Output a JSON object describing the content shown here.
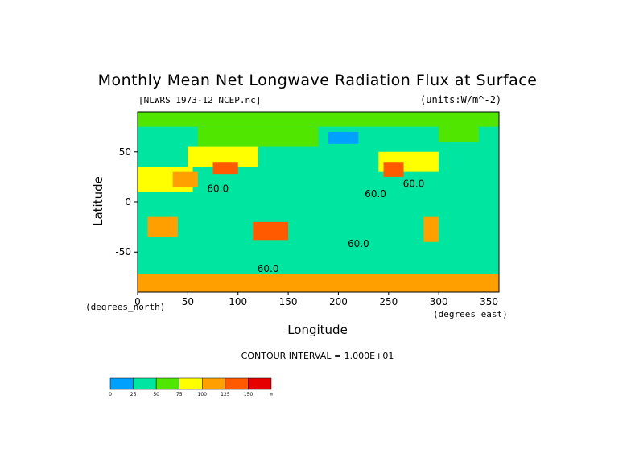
{
  "chart_data": {
    "type": "heatmap",
    "title": "Monthly Mean Net Longwave Radiation Flux at Surface",
    "file_label": "[NLWRS_1973-12_NCEP.nc]",
    "units_label": "(units:W/m^-2)",
    "xlabel": "Longitude",
    "ylabel": "Latitude",
    "x_unit_label": "(degrees_east)",
    "y_unit_label": "(degrees_north)",
    "xlim": [
      0,
      360
    ],
    "ylim": [
      -90,
      90
    ],
    "x_ticks": [
      0,
      50,
      100,
      150,
      200,
      250,
      300,
      350
    ],
    "y_ticks": [
      50,
      0,
      -50
    ],
    "contour_interval_label": "CONTOUR INTERVAL = 1.000E+01",
    "contour_labels": [
      "60.0",
      "60.0",
      "60.0",
      "60.0",
      "60.0"
    ],
    "colorbar": {
      "levels": [
        "0",
        "25",
        "50",
        "75",
        "100",
        "125",
        "150",
        "∞"
      ],
      "colors": [
        "#00a0ff",
        "#00e6a0",
        "#50e600",
        "#ffff00",
        "#ffa000",
        "#ff5a00",
        "#e60000"
      ]
    },
    "regions": [
      {
        "name": "base",
        "lon": [
          0,
          360
        ],
        "lat": [
          -90,
          90
        ],
        "value": 40
      },
      {
        "name": "tropical-band",
        "lon": [
          0,
          360
        ],
        "lat": [
          -25,
          25
        ],
        "value": 35
      },
      {
        "name": "arctic-band",
        "lon": [
          0,
          360
        ],
        "lat": [
          75,
          90
        ],
        "value": 55
      },
      {
        "name": "antarctic-band",
        "lon": [
          0,
          360
        ],
        "lat": [
          -90,
          -72
        ],
        "value": 110
      },
      {
        "name": "north-africa",
        "lon": [
          0,
          55
        ],
        "lat": [
          10,
          35
        ],
        "value": 90
      },
      {
        "name": "arabia",
        "lon": [
          35,
          60
        ],
        "lat": [
          15,
          30
        ],
        "value": 110
      },
      {
        "name": "central-asia",
        "lon": [
          50,
          120
        ],
        "lat": [
          35,
          55
        ],
        "value": 85
      },
      {
        "name": "tibet",
        "lon": [
          75,
          100
        ],
        "lat": [
          28,
          40
        ],
        "value": 140
      },
      {
        "name": "siberia",
        "lon": [
          60,
          180
        ],
        "lat": [
          55,
          75
        ],
        "value": 60
      },
      {
        "name": "alaska",
        "lon": [
          190,
          220
        ],
        "lat": [
          58,
          70
        ],
        "value": 20
      },
      {
        "name": "north-america",
        "lon": [
          240,
          300
        ],
        "lat": [
          30,
          50
        ],
        "value": 80
      },
      {
        "name": "southwest-us",
        "lon": [
          245,
          265
        ],
        "lat": [
          25,
          40
        ],
        "value": 130
      },
      {
        "name": "south-africa",
        "lon": [
          10,
          40
        ],
        "lat": [
          -35,
          -15
        ],
        "value": 100
      },
      {
        "name": "australia",
        "lon": [
          115,
          150
        ],
        "lat": [
          -38,
          -20
        ],
        "value": 135
      },
      {
        "name": "south-america",
        "lon": [
          285,
          300
        ],
        "lat": [
          -40,
          -15
        ],
        "value": 120
      },
      {
        "name": "greenland",
        "lon": [
          300,
          340
        ],
        "lat": [
          60,
          80
        ],
        "value": 65
      }
    ]
  }
}
